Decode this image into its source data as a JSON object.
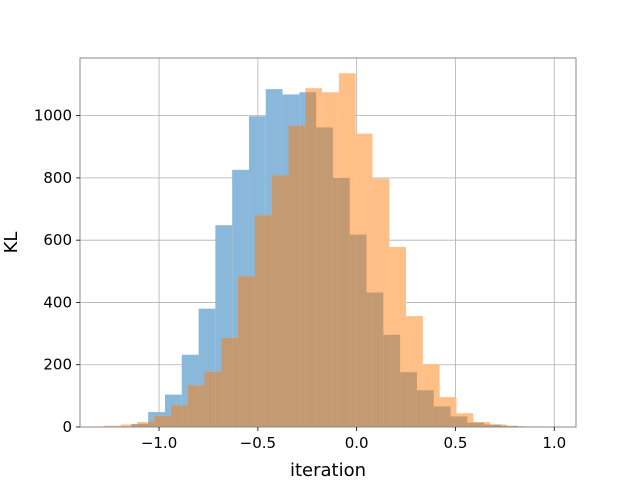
{
  "chart_data": {
    "type": "bar",
    "title": "",
    "xlabel": "iteration",
    "ylabel": "KL",
    "xlim": [
      -1.4,
      1.11
    ],
    "ylim": [
      0,
      1185
    ],
    "xticks": [
      -1.0,
      -0.5,
      0.0,
      0.5,
      1.0
    ],
    "xtick_labels": [
      "−1.0",
      "−0.5",
      "0.0",
      "0.5",
      "1.0"
    ],
    "yticks": [
      0,
      200,
      400,
      600,
      800,
      1000
    ],
    "ytick_labels": [
      "0",
      "200",
      "400",
      "600",
      "800",
      "1000"
    ],
    "grid": true,
    "legend": "none",
    "overlap_color": "#c49a72",
    "series": [
      {
        "color": "#8ab8da",
        "bins": [
          {
            "x0": -1.14,
            "x1": -1.055,
            "value": 10
          },
          {
            "x0": -1.055,
            "x1": -0.97,
            "value": 48
          },
          {
            "x0": -0.97,
            "x1": -0.885,
            "value": 104
          },
          {
            "x0": -0.885,
            "x1": -0.8,
            "value": 232
          },
          {
            "x0": -0.8,
            "x1": -0.715,
            "value": 380
          },
          {
            "x0": -0.715,
            "x1": -0.63,
            "value": 648
          },
          {
            "x0": -0.63,
            "x1": -0.545,
            "value": 826
          },
          {
            "x0": -0.545,
            "x1": -0.46,
            "value": 998
          },
          {
            "x0": -0.46,
            "x1": -0.375,
            "value": 1085
          },
          {
            "x0": -0.375,
            "x1": -0.29,
            "value": 1068
          },
          {
            "x0": -0.29,
            "x1": -0.205,
            "value": 1075
          },
          {
            "x0": -0.205,
            "x1": -0.12,
            "value": 962
          },
          {
            "x0": -0.12,
            "x1": -0.035,
            "value": 800
          },
          {
            "x0": -0.035,
            "x1": 0.05,
            "value": 618
          },
          {
            "x0": 0.05,
            "x1": 0.135,
            "value": 432
          },
          {
            "x0": 0.135,
            "x1": 0.22,
            "value": 296
          },
          {
            "x0": 0.22,
            "x1": 0.305,
            "value": 176
          },
          {
            "x0": 0.305,
            "x1": 0.39,
            "value": 118
          },
          {
            "x0": 0.39,
            "x1": 0.475,
            "value": 66
          },
          {
            "x0": 0.475,
            "x1": 0.56,
            "value": 34
          },
          {
            "x0": 0.56,
            "x1": 0.645,
            "value": 14
          },
          {
            "x0": 0.645,
            "x1": 0.73,
            "value": 8
          },
          {
            "x0": 0.73,
            "x1": 0.815,
            "value": 4
          }
        ]
      },
      {
        "color": "#ffbf86",
        "bins": [
          {
            "x0": -1.28,
            "x1": -1.195,
            "value": 4
          },
          {
            "x0": -1.195,
            "x1": -1.11,
            "value": 8
          },
          {
            "x0": -1.11,
            "x1": -1.025,
            "value": 16
          },
          {
            "x0": -1.025,
            "x1": -0.94,
            "value": 36
          },
          {
            "x0": -0.94,
            "x1": -0.855,
            "value": 70
          },
          {
            "x0": -0.855,
            "x1": -0.77,
            "value": 134
          },
          {
            "x0": -0.77,
            "x1": -0.685,
            "value": 178
          },
          {
            "x0": -0.685,
            "x1": -0.6,
            "value": 286
          },
          {
            "x0": -0.6,
            "x1": -0.515,
            "value": 484
          },
          {
            "x0": -0.515,
            "x1": -0.43,
            "value": 680
          },
          {
            "x0": -0.43,
            "x1": -0.345,
            "value": 808
          },
          {
            "x0": -0.345,
            "x1": -0.26,
            "value": 968
          },
          {
            "x0": -0.26,
            "x1": -0.175,
            "value": 1088
          },
          {
            "x0": -0.175,
            "x1": -0.09,
            "value": 1075
          },
          {
            "x0": -0.09,
            "x1": -0.005,
            "value": 1136
          },
          {
            "x0": -0.005,
            "x1": 0.08,
            "value": 942
          },
          {
            "x0": 0.08,
            "x1": 0.165,
            "value": 798
          },
          {
            "x0": 0.165,
            "x1": 0.25,
            "value": 578
          },
          {
            "x0": 0.25,
            "x1": 0.335,
            "value": 356
          },
          {
            "x0": 0.335,
            "x1": 0.42,
            "value": 202
          },
          {
            "x0": 0.42,
            "x1": 0.505,
            "value": 96
          },
          {
            "x0": 0.505,
            "x1": 0.59,
            "value": 44
          },
          {
            "x0": 0.59,
            "x1": 0.675,
            "value": 16
          },
          {
            "x0": 0.675,
            "x1": 0.76,
            "value": 8
          },
          {
            "x0": 0.76,
            "x1": 0.845,
            "value": 3
          },
          {
            "x0": 0.845,
            "x1": 0.93,
            "value": 2
          }
        ]
      }
    ]
  }
}
